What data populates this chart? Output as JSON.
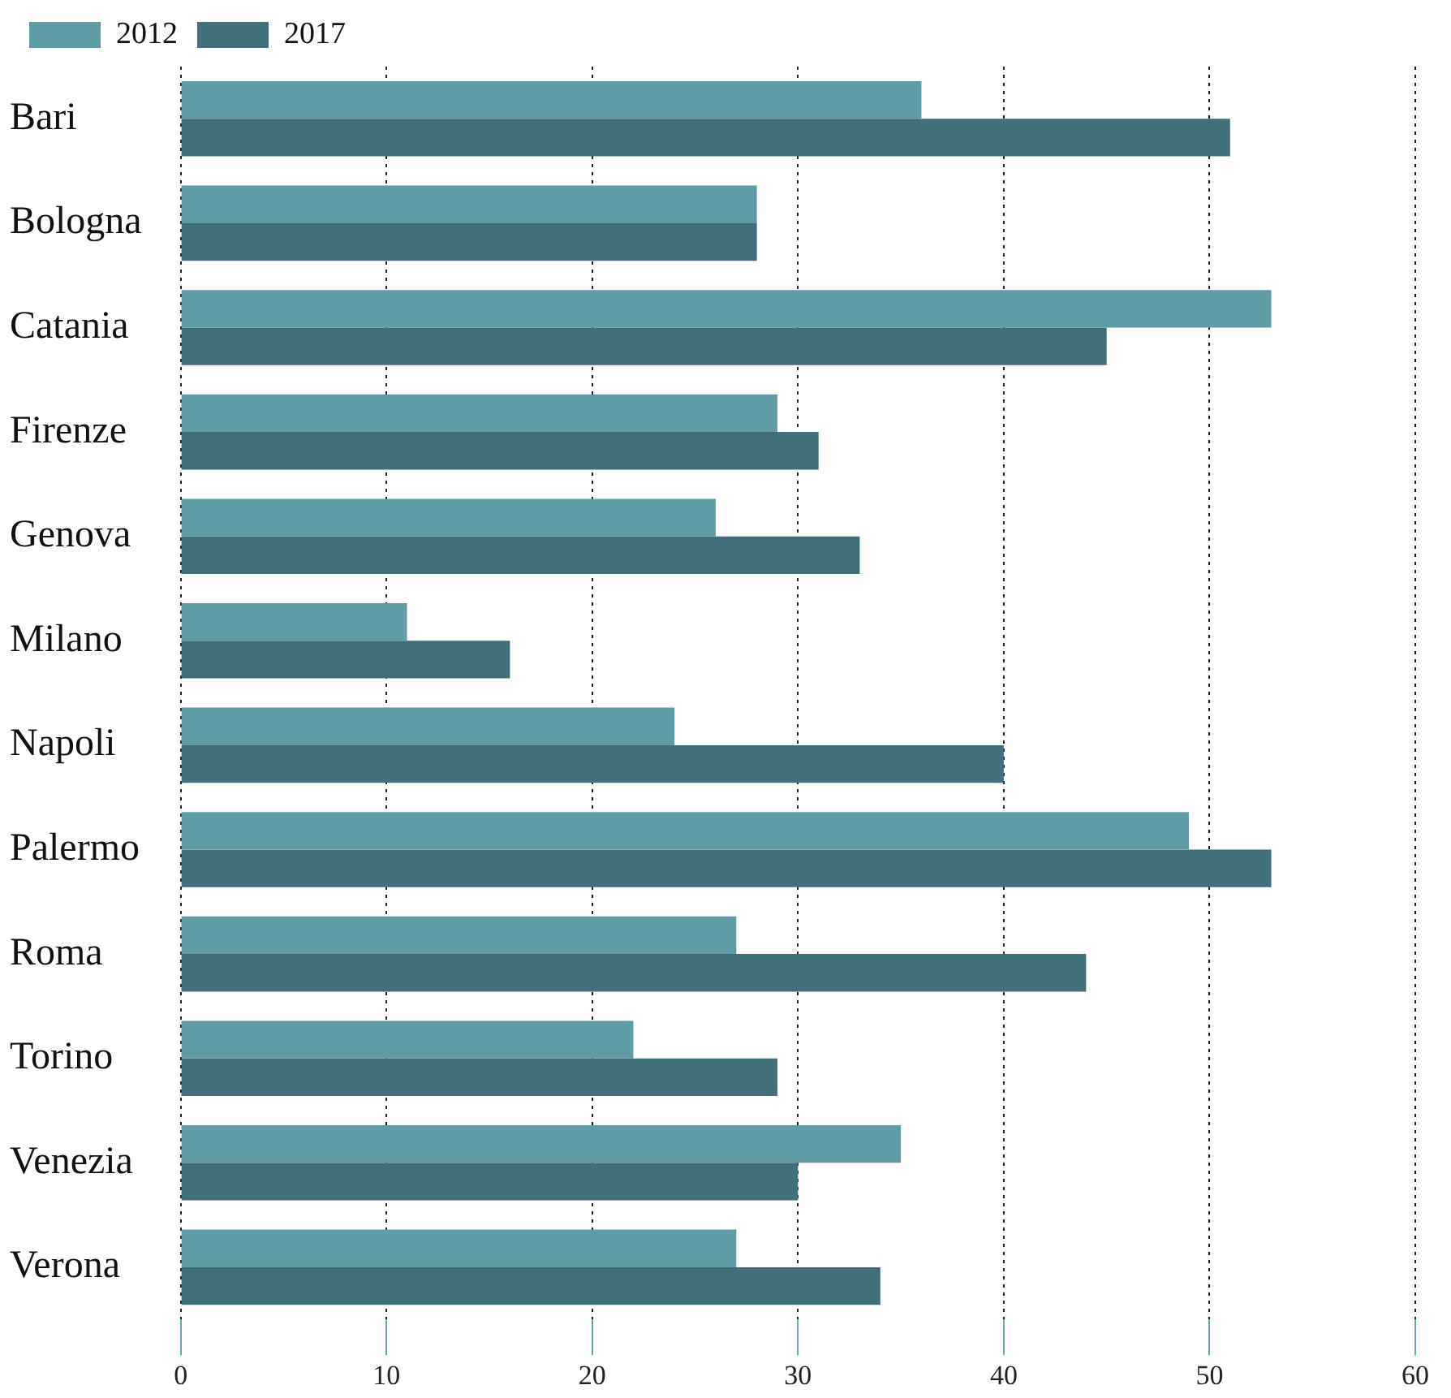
{
  "chart_data": {
    "type": "bar",
    "orientation": "horizontal",
    "categories": [
      "Bari",
      "Bologna",
      "Catania",
      "Firenze",
      "Genova",
      "Milano",
      "Napoli",
      "Palermo",
      "Roma",
      "Torino",
      "Venezia",
      "Verona"
    ],
    "series": [
      {
        "name": "2012",
        "color": "#5f9ca5",
        "values": [
          36,
          28,
          53,
          29,
          26,
          11,
          24,
          49,
          27,
          22,
          35,
          27
        ]
      },
      {
        "name": "2017",
        "color": "#41707b",
        "values": [
          51,
          28,
          45,
          31,
          33,
          16,
          40,
          53,
          44,
          29,
          30,
          34
        ]
      }
    ],
    "xlim": [
      0,
      60
    ],
    "xticks": [
      0,
      10,
      20,
      30,
      40,
      50,
      60
    ],
    "grid": "x",
    "legend": "top left"
  }
}
